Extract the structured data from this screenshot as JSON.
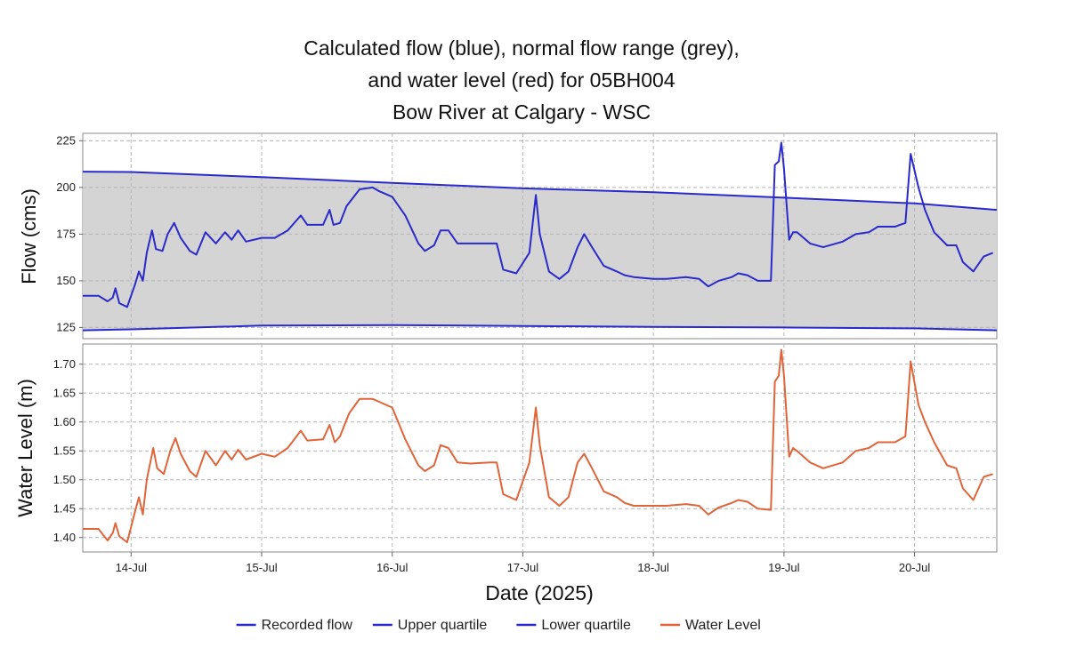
{
  "chart_data": {
    "type": "line",
    "title_lines": [
      "Calculated flow (blue), normal flow range (grey),",
      "and water level (red) for 05BH004",
      "Bow River at Calgary - WSC"
    ],
    "xlabel": "Date (2025)",
    "x_ticks": [
      "14-Jul",
      "15-Jul",
      "16-Jul",
      "17-Jul",
      "18-Jul",
      "19-Jul",
      "20-Jul"
    ],
    "x_tick_days": [
      14,
      15,
      16,
      17,
      18,
      19,
      20
    ],
    "xlim": [
      13.63,
      20.63
    ],
    "colors": {
      "flow": "#2a2acc",
      "range_fill": "#d4d4d4",
      "level": "#e0643a",
      "grid": "#b4b4b4"
    },
    "flow_panel": {
      "ylabel": "Flow (cms)",
      "ylim": [
        119,
        229
      ],
      "y_ticks": [
        125,
        150,
        175,
        200,
        225
      ],
      "upper_quartile": [
        [
          13.63,
          208.5
        ],
        [
          14.0,
          208.3
        ],
        [
          15.0,
          205.5
        ],
        [
          16.0,
          202.5
        ],
        [
          17.0,
          199.5
        ],
        [
          18.0,
          197.5
        ],
        [
          19.0,
          194.5
        ],
        [
          20.0,
          191.5
        ],
        [
          20.63,
          188.0
        ]
      ],
      "lower_quartile": [
        [
          13.63,
          123.5
        ],
        [
          14.0,
          124.0
        ],
        [
          15.0,
          126.0
        ],
        [
          16.0,
          126.3
        ],
        [
          17.0,
          125.8
        ],
        [
          18.0,
          125.3
        ],
        [
          19.0,
          125.0
        ],
        [
          20.0,
          124.5
        ],
        [
          20.63,
          123.5
        ]
      ],
      "recorded_flow": [
        [
          13.63,
          142
        ],
        [
          13.75,
          142
        ],
        [
          13.82,
          139
        ],
        [
          13.86,
          141
        ],
        [
          13.88,
          146
        ],
        [
          13.91,
          138
        ],
        [
          13.97,
          136
        ],
        [
          14.03,
          148
        ],
        [
          14.06,
          155
        ],
        [
          14.09,
          150
        ],
        [
          14.12,
          165
        ],
        [
          14.16,
          177
        ],
        [
          14.19,
          167
        ],
        [
          14.24,
          166
        ],
        [
          14.28,
          175
        ],
        [
          14.33,
          181
        ],
        [
          14.38,
          173
        ],
        [
          14.45,
          166
        ],
        [
          14.5,
          164
        ],
        [
          14.57,
          176
        ],
        [
          14.65,
          170
        ],
        [
          14.72,
          176
        ],
        [
          14.77,
          172
        ],
        [
          14.82,
          177
        ],
        [
          14.88,
          171
        ],
        [
          15.0,
          173
        ],
        [
          15.1,
          173
        ],
        [
          15.2,
          177
        ],
        [
          15.3,
          185
        ],
        [
          15.35,
          180
        ],
        [
          15.47,
          180
        ],
        [
          15.52,
          188
        ],
        [
          15.55,
          180
        ],
        [
          15.6,
          181
        ],
        [
          15.65,
          190
        ],
        [
          15.75,
          199
        ],
        [
          15.85,
          200
        ],
        [
          15.9,
          198
        ],
        [
          16.0,
          195
        ],
        [
          16.1,
          185
        ],
        [
          16.2,
          170
        ],
        [
          16.25,
          166
        ],
        [
          16.32,
          169
        ],
        [
          16.37,
          177
        ],
        [
          16.43,
          177
        ],
        [
          16.5,
          170
        ],
        [
          16.6,
          170
        ],
        [
          16.75,
          170
        ],
        [
          16.8,
          170
        ],
        [
          16.85,
          156
        ],
        [
          16.95,
          154
        ],
        [
          17.05,
          165
        ],
        [
          17.1,
          196
        ],
        [
          17.13,
          175
        ],
        [
          17.2,
          155
        ],
        [
          17.28,
          151
        ],
        [
          17.35,
          155
        ],
        [
          17.42,
          168
        ],
        [
          17.47,
          175
        ],
        [
          17.53,
          168
        ],
        [
          17.62,
          158
        ],
        [
          17.72,
          155
        ],
        [
          17.78,
          153
        ],
        [
          17.85,
          152
        ],
        [
          18.0,
          151
        ],
        [
          18.1,
          151
        ],
        [
          18.25,
          152
        ],
        [
          18.35,
          151
        ],
        [
          18.42,
          147
        ],
        [
          18.5,
          150
        ],
        [
          18.6,
          152
        ],
        [
          18.65,
          154
        ],
        [
          18.72,
          153
        ],
        [
          18.8,
          150
        ],
        [
          18.9,
          150
        ],
        [
          18.93,
          212
        ],
        [
          18.96,
          214
        ],
        [
          18.98,
          224
        ],
        [
          19.0,
          210
        ],
        [
          19.04,
          172
        ],
        [
          19.07,
          176
        ],
        [
          19.1,
          176
        ],
        [
          19.2,
          170
        ],
        [
          19.3,
          168
        ],
        [
          19.45,
          171
        ],
        [
          19.55,
          175
        ],
        [
          19.65,
          176
        ],
        [
          19.72,
          179
        ],
        [
          19.85,
          179
        ],
        [
          19.93,
          181
        ],
        [
          19.97,
          218
        ],
        [
          20.03,
          200
        ],
        [
          20.08,
          188
        ],
        [
          20.15,
          176
        ],
        [
          20.25,
          169
        ],
        [
          20.32,
          169
        ],
        [
          20.37,
          160
        ],
        [
          20.45,
          155
        ],
        [
          20.53,
          163
        ],
        [
          20.6,
          165
        ]
      ]
    },
    "level_panel": {
      "ylabel": "Water Level (m)",
      "ylim": [
        1.375,
        1.735
      ],
      "y_ticks": [
        1.4,
        1.45,
        1.5,
        1.55,
        1.6,
        1.65,
        1.7
      ],
      "y_tick_labels": [
        "1.40",
        "1.45",
        "1.50",
        "1.55",
        "1.60",
        "1.65",
        "1.70"
      ],
      "water_level": [
        [
          13.63,
          1.415
        ],
        [
          13.75,
          1.415
        ],
        [
          13.82,
          1.395
        ],
        [
          13.86,
          1.408
        ],
        [
          13.88,
          1.425
        ],
        [
          13.91,
          1.402
        ],
        [
          13.97,
          1.392
        ],
        [
          14.03,
          1.445
        ],
        [
          14.06,
          1.47
        ],
        [
          14.09,
          1.44
        ],
        [
          14.12,
          1.5
        ],
        [
          14.17,
          1.555
        ],
        [
          14.2,
          1.52
        ],
        [
          14.25,
          1.51
        ],
        [
          14.3,
          1.55
        ],
        [
          14.34,
          1.572
        ],
        [
          14.38,
          1.545
        ],
        [
          14.45,
          1.515
        ],
        [
          14.5,
          1.505
        ],
        [
          14.57,
          1.55
        ],
        [
          14.65,
          1.525
        ],
        [
          14.72,
          1.55
        ],
        [
          14.77,
          1.535
        ],
        [
          14.82,
          1.552
        ],
        [
          14.88,
          1.535
        ],
        [
          15.0,
          1.545
        ],
        [
          15.1,
          1.54
        ],
        [
          15.2,
          1.555
        ],
        [
          15.3,
          1.585
        ],
        [
          15.35,
          1.568
        ],
        [
          15.47,
          1.57
        ],
        [
          15.52,
          1.595
        ],
        [
          15.56,
          1.565
        ],
        [
          15.6,
          1.575
        ],
        [
          15.67,
          1.615
        ],
        [
          15.75,
          1.64
        ],
        [
          15.85,
          1.64
        ],
        [
          15.9,
          1.635
        ],
        [
          16.0,
          1.625
        ],
        [
          16.1,
          1.57
        ],
        [
          16.2,
          1.525
        ],
        [
          16.25,
          1.515
        ],
        [
          16.32,
          1.525
        ],
        [
          16.37,
          1.56
        ],
        [
          16.43,
          1.555
        ],
        [
          16.5,
          1.53
        ],
        [
          16.6,
          1.528
        ],
        [
          16.75,
          1.53
        ],
        [
          16.8,
          1.53
        ],
        [
          16.85,
          1.475
        ],
        [
          16.95,
          1.465
        ],
        [
          17.05,
          1.53
        ],
        [
          17.1,
          1.625
        ],
        [
          17.13,
          1.56
        ],
        [
          17.2,
          1.47
        ],
        [
          17.28,
          1.455
        ],
        [
          17.35,
          1.47
        ],
        [
          17.42,
          1.53
        ],
        [
          17.47,
          1.545
        ],
        [
          17.53,
          1.52
        ],
        [
          17.62,
          1.48
        ],
        [
          17.72,
          1.47
        ],
        [
          17.78,
          1.46
        ],
        [
          17.85,
          1.455
        ],
        [
          18.0,
          1.455
        ],
        [
          18.1,
          1.455
        ],
        [
          18.25,
          1.458
        ],
        [
          18.35,
          1.455
        ],
        [
          18.42,
          1.44
        ],
        [
          18.5,
          1.452
        ],
        [
          18.6,
          1.46
        ],
        [
          18.65,
          1.465
        ],
        [
          18.72,
          1.462
        ],
        [
          18.8,
          1.45
        ],
        [
          18.9,
          1.448
        ],
        [
          18.93,
          1.67
        ],
        [
          18.96,
          1.68
        ],
        [
          18.98,
          1.725
        ],
        [
          19.0,
          1.68
        ],
        [
          19.04,
          1.54
        ],
        [
          19.07,
          1.555
        ],
        [
          19.1,
          1.55
        ],
        [
          19.2,
          1.53
        ],
        [
          19.3,
          1.52
        ],
        [
          19.45,
          1.53
        ],
        [
          19.55,
          1.55
        ],
        [
          19.65,
          1.555
        ],
        [
          19.72,
          1.565
        ],
        [
          19.85,
          1.565
        ],
        [
          19.93,
          1.575
        ],
        [
          19.97,
          1.705
        ],
        [
          20.03,
          1.63
        ],
        [
          20.08,
          1.6
        ],
        [
          20.15,
          1.565
        ],
        [
          20.25,
          1.525
        ],
        [
          20.32,
          1.52
        ],
        [
          20.37,
          1.485
        ],
        [
          20.45,
          1.465
        ],
        [
          20.53,
          1.505
        ],
        [
          20.6,
          1.51
        ]
      ]
    },
    "legend": {
      "position": "bottom-center",
      "entries": [
        {
          "label": "Recorded flow",
          "color": "#2a2acc"
        },
        {
          "label": "Upper quartile",
          "color": "#2a2acc"
        },
        {
          "label": "Lower quartile",
          "color": "#2a2acc"
        },
        {
          "label": "Water Level",
          "color": "#e0643a"
        }
      ]
    }
  }
}
